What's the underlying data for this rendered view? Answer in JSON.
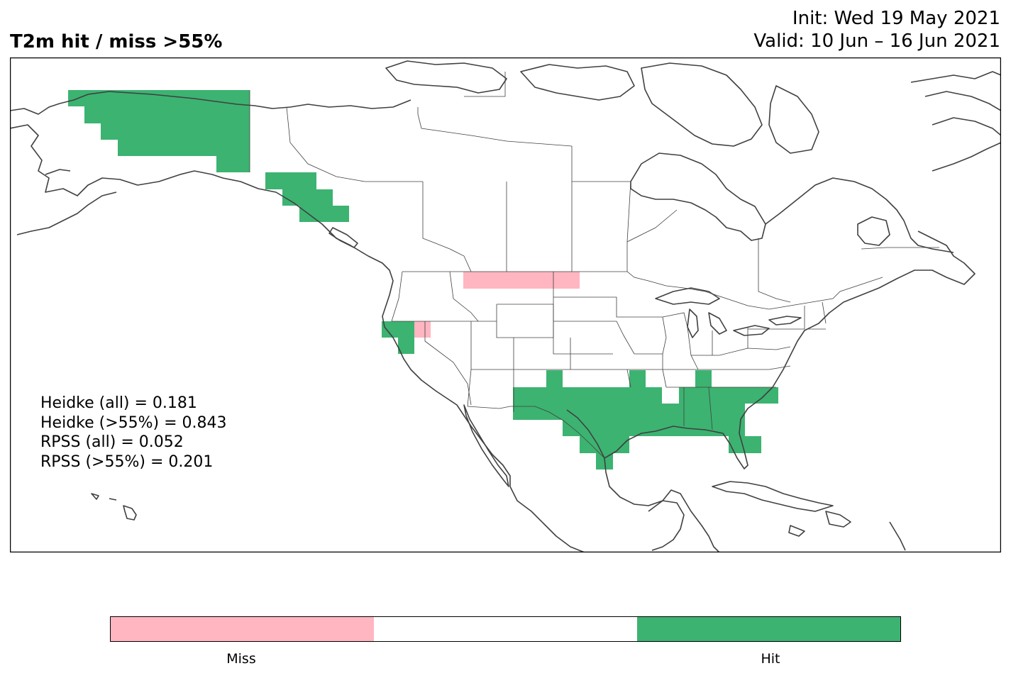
{
  "title": "T2m hit / miss  >55%",
  "init_line": "Init: Wed 19 May 2021",
  "valid_line": "Valid: 10 Jun – 16 Jun 2021",
  "stats": {
    "heidke_all": "Heidke (all) = 0.181",
    "heidke_55": "Heidke (>55%) = 0.843",
    "rpss_all": "RPSS (all) = 0.052",
    "rpss_55": "RPSS (>55%) = 0.201"
  },
  "colorbar": {
    "miss_label": "Miss",
    "hit_label": "Hit",
    "miss_color": "#ffb6c1",
    "neutral_color": "#ffffff",
    "hit_color": "#3cb371"
  },
  "colors": {
    "coast": "#404040",
    "border": "#404040"
  }
}
